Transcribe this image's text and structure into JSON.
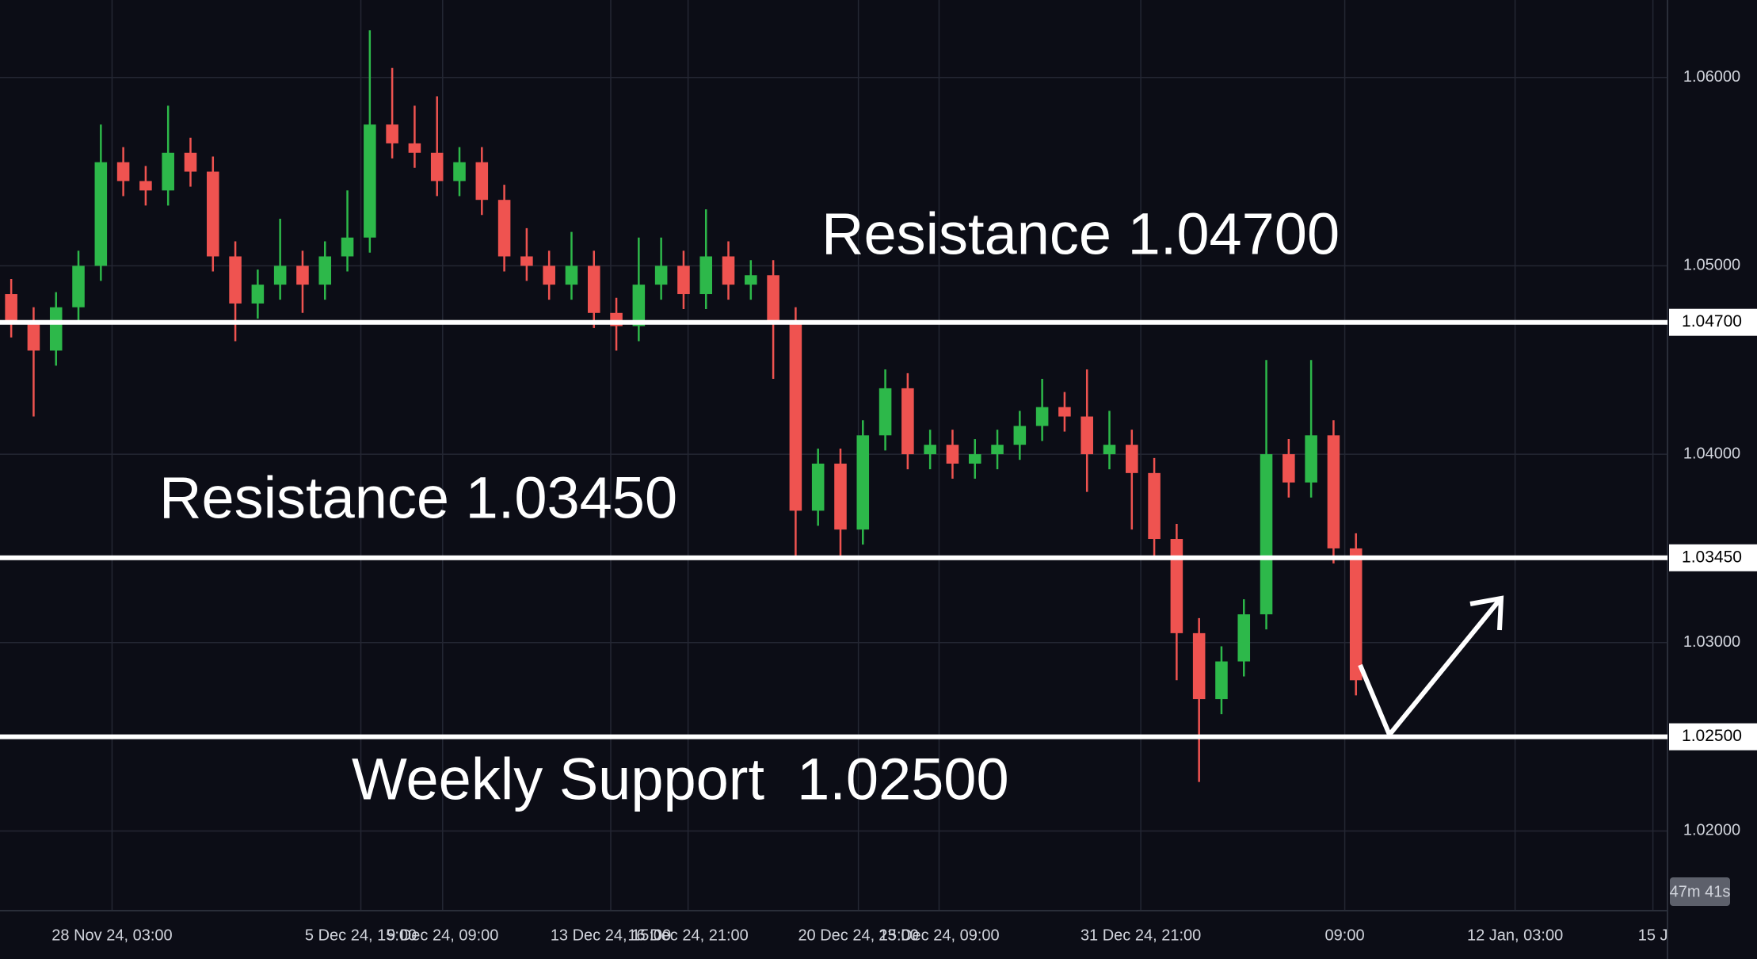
{
  "chart_data": {
    "type": "candlestick",
    "colors": {
      "up": "#2db84a",
      "down": "#ef5350"
    },
    "grid": true,
    "xlim": [
      -0.5,
      73.9
    ],
    "ylim": [
      1.01577,
      1.06411
    ],
    "yticks": [
      {
        "value": 1.02,
        "label": "1.02000"
      },
      {
        "value": 1.03,
        "label": "1.03000"
      },
      {
        "value": 1.04,
        "label": "1.04000"
      },
      {
        "value": 1.05,
        "label": "1.05000"
      },
      {
        "value": 1.06,
        "label": "1.06000"
      }
    ],
    "xticks": [
      {
        "value": 4.5,
        "label": "28 Nov 24, 03:00"
      },
      {
        "value": 15.6,
        "label": "5 Dec 24, 15:00"
      },
      {
        "value": 19.25,
        "label": "9 Dec 24, 09:00"
      },
      {
        "value": 26.75,
        "label": "13 Dec 24, 15:00"
      },
      {
        "value": 30.2,
        "label": "16 Dec 24, 21:00"
      },
      {
        "value": 37.8,
        "label": "20 Dec 24, 15:00"
      },
      {
        "value": 41.4,
        "label": "23 Dec 24, 09:00"
      },
      {
        "value": 50.4,
        "label": "31 Dec 24, 21:00"
      },
      {
        "value": 59.5,
        "label": "09:00"
      },
      {
        "value": 67.1,
        "label": "12 Jan, 03:00"
      },
      {
        "value": 73.25,
        "label": "15 J"
      }
    ],
    "open": [
      1.0485,
      1.047,
      1.0455,
      1.0478,
      1.05,
      1.0555,
      1.0545,
      1.054,
      1.056,
      1.055,
      1.0505,
      1.048,
      1.049,
      1.05,
      1.049,
      1.0505,
      1.0515,
      1.0575,
      1.0565,
      1.056,
      1.0545,
      1.0555,
      1.0535,
      1.0505,
      1.05,
      1.049,
      1.05,
      1.0475,
      1.0468,
      1.049,
      1.05,
      1.0485,
      1.0505,
      1.049,
      1.0495,
      1.047,
      1.037,
      1.0395,
      1.036,
      1.041,
      1.0435,
      1.04,
      1.0405,
      1.0395,
      1.04,
      1.0405,
      1.0415,
      1.0425,
      1.042,
      1.04,
      1.0405,
      1.039,
      1.0355,
      1.0305,
      1.027,
      1.029,
      1.0315,
      1.04,
      1.0385,
      1.041,
      1.035
    ],
    "high": [
      1.0493,
      1.0478,
      1.0486,
      1.0508,
      1.0575,
      1.0563,
      1.0553,
      1.0585,
      1.0568,
      1.0558,
      1.0513,
      1.0498,
      1.0525,
      1.0508,
      1.0513,
      1.054,
      1.0625,
      1.0605,
      1.0585,
      1.059,
      1.0563,
      1.0563,
      1.0543,
      1.052,
      1.0508,
      1.0518,
      1.0508,
      1.0483,
      1.0515,
      1.0515,
      1.0508,
      1.053,
      1.0513,
      1.0503,
      1.0503,
      1.0478,
      1.0403,
      1.0403,
      1.0418,
      1.0445,
      1.0443,
      1.0413,
      1.0413,
      1.0408,
      1.0413,
      1.0423,
      1.044,
      1.0433,
      1.0445,
      1.0423,
      1.0413,
      1.0398,
      1.0363,
      1.0313,
      1.0298,
      1.0323,
      1.045,
      1.0408,
      1.045,
      1.0418,
      1.0358
    ],
    "low": [
      1.0462,
      1.042,
      1.0447,
      1.047,
      1.0492,
      1.0537,
      1.0532,
      1.0532,
      1.0542,
      1.0497,
      1.046,
      1.0472,
      1.0482,
      1.0475,
      1.0482,
      1.0497,
      1.0507,
      1.0557,
      1.0552,
      1.0537,
      1.0537,
      1.0527,
      1.0497,
      1.0492,
      1.0482,
      1.0482,
      1.0467,
      1.0455,
      1.046,
      1.0482,
      1.0477,
      1.0477,
      1.0482,
      1.0482,
      1.044,
      1.0345,
      1.0362,
      1.0345,
      1.0352,
      1.0402,
      1.0392,
      1.0392,
      1.0387,
      1.0387,
      1.0392,
      1.0397,
      1.0407,
      1.0412,
      1.038,
      1.0392,
      1.036,
      1.0345,
      1.028,
      1.0226,
      1.0262,
      1.0282,
      1.0307,
      1.0377,
      1.0377,
      1.0342,
      1.0272
    ],
    "close": [
      1.047,
      1.0455,
      1.0478,
      1.05,
      1.0555,
      1.0545,
      1.054,
      1.056,
      1.055,
      1.0505,
      1.048,
      1.049,
      1.05,
      1.049,
      1.0505,
      1.0515,
      1.0575,
      1.0565,
      1.056,
      1.0545,
      1.0555,
      1.0535,
      1.0505,
      1.05,
      1.049,
      1.05,
      1.0475,
      1.0468,
      1.049,
      1.05,
      1.0485,
      1.0505,
      1.049,
      1.0495,
      1.047,
      1.037,
      1.0395,
      1.036,
      1.041,
      1.0435,
      1.04,
      1.0405,
      1.0395,
      1.04,
      1.0405,
      1.0415,
      1.0425,
      1.042,
      1.04,
      1.0405,
      1.039,
      1.0355,
      1.0305,
      1.027,
      1.029,
      1.0315,
      1.04,
      1.0385,
      1.041,
      1.035,
      1.028
    ],
    "levels": [
      {
        "value": 1.047,
        "label": "1.04700"
      },
      {
        "value": 1.0345,
        "label": "1.03450"
      },
      {
        "value": 1.025,
        "label": "1.02500"
      }
    ],
    "annotations": [
      {
        "text": "Resistance 1.04700"
      },
      {
        "text": "Resistance 1.03450"
      },
      {
        "text": "Weekly Support  1.02500"
      }
    ],
    "countdown": "47m 41s"
  }
}
